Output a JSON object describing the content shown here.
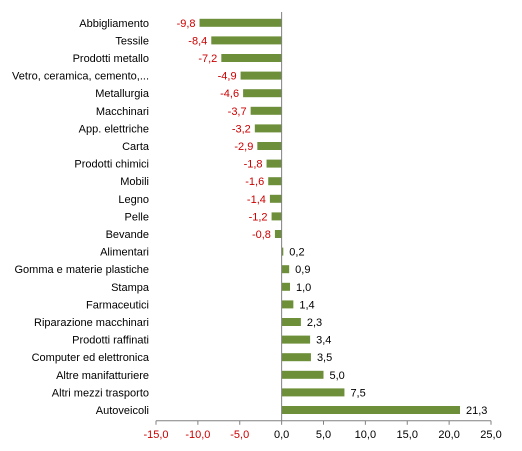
{
  "chart_data": {
    "type": "bar",
    "orientation": "horizontal",
    "categories": [
      "Abbigliamento",
      "Tessile",
      "Prodotti metallo",
      "Vetro, ceramica, cemento,...",
      "Metallurgia",
      "Macchinari",
      "App. elettriche",
      "Carta",
      "Prodotti chimici",
      "Mobili",
      "Legno",
      "Pelle",
      "Bevande",
      "Alimentari",
      "Gomma e materie plastiche",
      "Stampa",
      "Farmaceutici",
      "Riparazione macchinari",
      "Prodotti raffinati",
      "Computer ed elettronica",
      "Altre manifatturiere",
      "Altri mezzi trasporto",
      "Autoveicoli"
    ],
    "values": [
      -9.8,
      -8.4,
      -7.2,
      -4.9,
      -4.6,
      -3.7,
      -3.2,
      -2.9,
      -1.8,
      -1.6,
      -1.4,
      -1.2,
      -0.8,
      0.2,
      0.9,
      1.0,
      1.4,
      2.3,
      3.4,
      3.5,
      5.0,
      7.5,
      21.3
    ],
    "value_labels": [
      "-9,8",
      "-8,4",
      "-7,2",
      "-4,9",
      "-4,6",
      "-3,7",
      "-3,2",
      "-2,9",
      "-1,8",
      "-1,6",
      "-1,4",
      "-1,2",
      "-0,8",
      "0,2",
      "0,9",
      "1,0",
      "1,4",
      "2,3",
      "3,4",
      "3,5",
      "5,0",
      "7,5",
      "21,3"
    ],
    "xlim": [
      -15,
      25
    ],
    "xticks": [
      -15,
      -10,
      -5,
      0,
      5,
      10,
      15,
      20,
      25
    ],
    "xtick_labels": [
      "-15,0",
      "-10,0",
      "-5,0",
      "0,0",
      "5,0",
      "10,0",
      "15,0",
      "20,0",
      "25,0"
    ],
    "grid": false,
    "legend": "none",
    "title": "",
    "xlabel": "",
    "ylabel": ""
  },
  "colors": {
    "bar": "#6e8f3a",
    "negative_label": "#cc0000",
    "positive_label": "#000000",
    "axis": "#808080"
  }
}
